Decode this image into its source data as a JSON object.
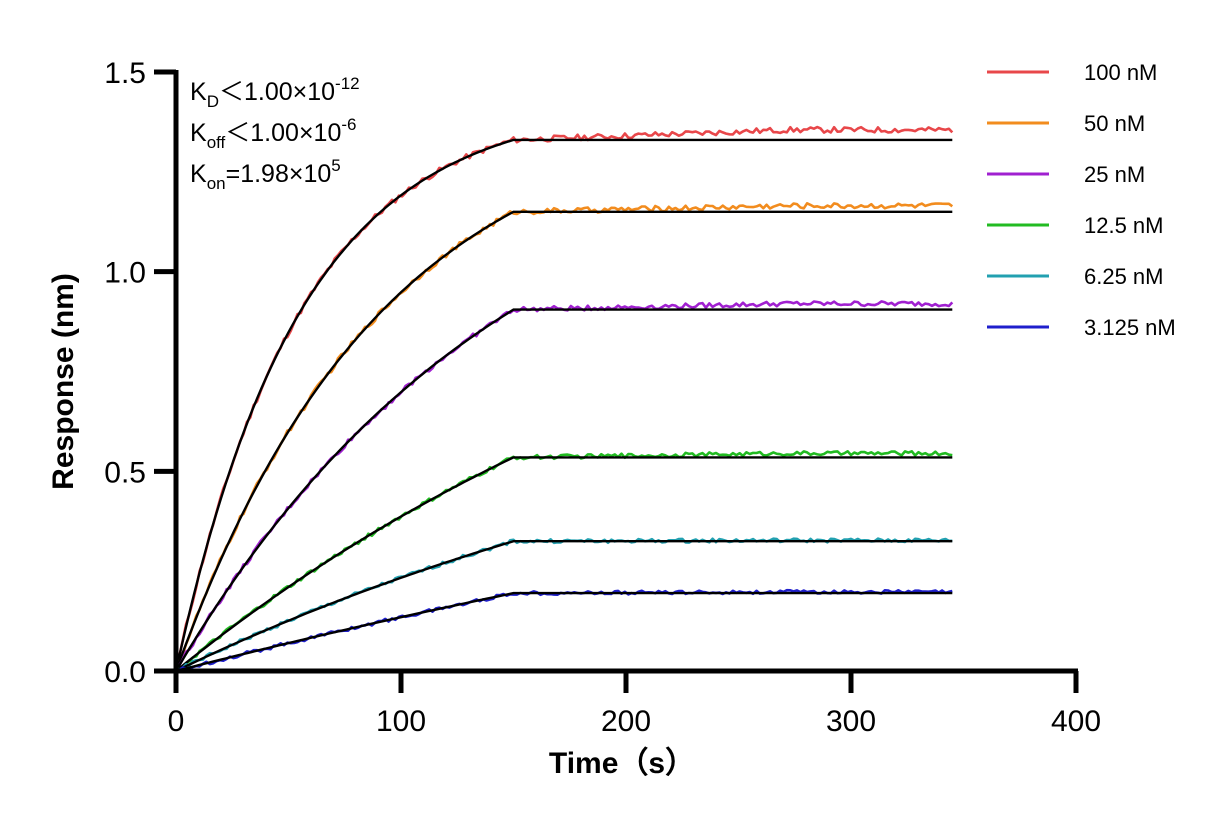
{
  "chart_data": {
    "type": "line",
    "title": "",
    "xlabel": "Time（s）",
    "ylabel": "Response (nm)",
    "xlim": [
      0,
      400
    ],
    "ylim": [
      0,
      1.5
    ],
    "x_ticks": [
      "0",
      "100",
      "200",
      "300",
      "400"
    ],
    "y_ticks": [
      "0.0",
      "0.5",
      "1.0",
      "1.5"
    ],
    "x_tick_values": [
      0,
      100,
      200,
      300,
      400
    ],
    "y_tick_values": [
      0,
      0.5,
      1.0,
      1.5
    ],
    "grid": false,
    "legend_position": "right",
    "association_end_s": 150,
    "end_time_s": 345,
    "annotations": [
      {
        "main": "K",
        "sub": "D",
        "rest": "＜1.00×10",
        "sup": "-12"
      },
      {
        "main": "K",
        "sub": "off",
        "rest": "＜1.00×10",
        "sup": "-6"
      },
      {
        "main": "K",
        "sub": "on",
        "rest": "=1.98×10",
        "sup": "5"
      }
    ],
    "series": [
      {
        "name": "100 nM",
        "color": "#e8474a",
        "plateau": 1.33,
        "kobs": 0.0181,
        "measured_end": 1.355
      },
      {
        "name": "50 nM",
        "color": "#f28c1e",
        "plateau": 1.15,
        "kobs": 0.0109,
        "measured_end": 1.165
      },
      {
        "name": "25 nM",
        "color": "#a020d0",
        "plateau": 0.905,
        "kobs": 0.0068,
        "measured_end": 0.92
      },
      {
        "name": "12.5 nM",
        "color": "#22bb22",
        "plateau": 0.535,
        "kobs": 0.0035,
        "measured_end": 0.545
      },
      {
        "name": "6.25 nM",
        "color": "#22a0b0",
        "plateau": 0.325,
        "kobs": 0.0032,
        "measured_end": 0.327
      },
      {
        "name": "3.125 nM",
        "color": "#1f1fcc",
        "plateau": 0.195,
        "kobs": 0.0015,
        "measured_end": 0.198
      }
    ],
    "fit_color": "#000000"
  }
}
